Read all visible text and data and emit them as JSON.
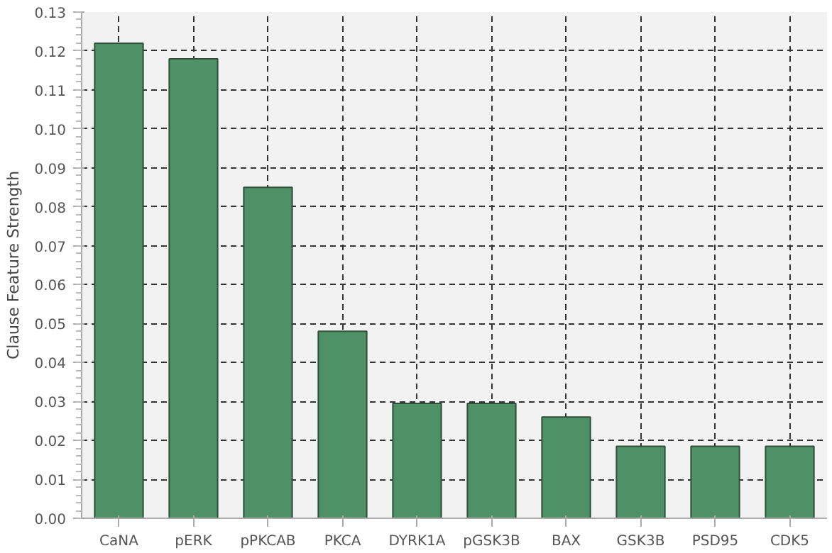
{
  "chart_data": {
    "type": "bar",
    "ylabel": "Clause Feature Strength",
    "categories": [
      "CaNA",
      "pERK",
      "pPKCAB",
      "PKCA",
      "DYRK1A",
      "pGSK3B",
      "BAX",
      "GSK3B",
      "PSD95",
      "CDK5"
    ],
    "values": [
      0.122,
      0.118,
      0.085,
      0.048,
      0.0295,
      0.0295,
      0.026,
      0.0185,
      0.0185,
      0.0185
    ],
    "color": "#4f9166",
    "ylim": [
      0,
      0.13
    ],
    "yticks": [
      {
        "value": 0,
        "label": "0.00"
      },
      {
        "value": 0.01,
        "label": "0.01"
      },
      {
        "value": 0.02,
        "label": "0.02"
      },
      {
        "value": 0.03,
        "label": "0.03"
      },
      {
        "value": 0.04,
        "label": "0.04"
      },
      {
        "value": 0.05,
        "label": "0.05"
      },
      {
        "value": 0.06,
        "label": "0.06"
      },
      {
        "value": 0.07,
        "label": "0.07"
      },
      {
        "value": 0.08,
        "label": "0.08"
      },
      {
        "value": 0.09,
        "label": "0.09"
      },
      {
        "value": 0.1,
        "label": "0.10"
      },
      {
        "value": 0.11,
        "label": "0.11"
      },
      {
        "value": 0.12,
        "label": "0.12"
      },
      {
        "value": 0.13,
        "label": "0.13"
      }
    ],
    "grid": true
  }
}
